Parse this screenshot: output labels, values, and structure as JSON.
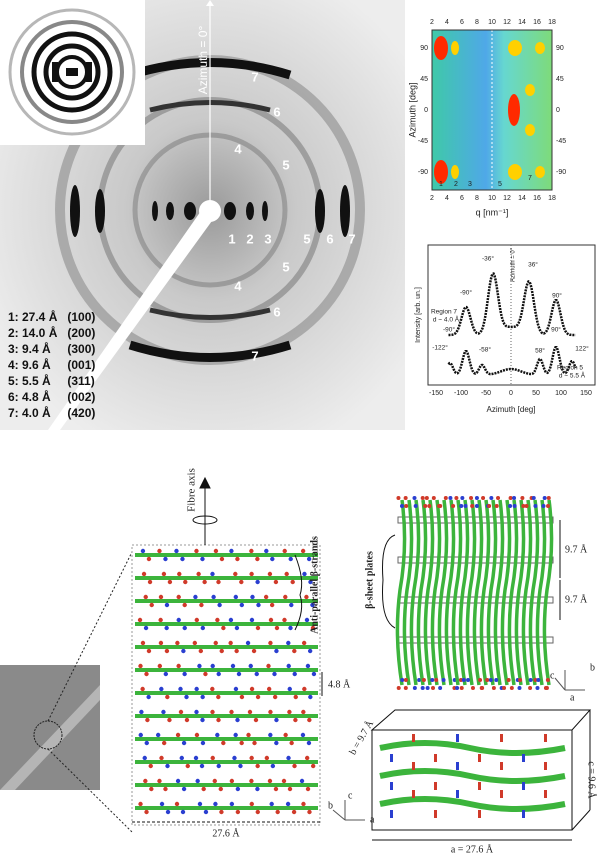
{
  "diffraction": {
    "azimuth_label": "Azimuth = 0°",
    "ring_labels": [
      "7",
      "6",
      "4",
      "5",
      "1",
      "2",
      "3",
      "5",
      "6",
      "7",
      "5",
      "4",
      "6",
      "7"
    ],
    "legend": [
      "1: 27.4 Å   (100)",
      "2: 14.0 Å   (200)",
      "3: 9.4 Å     (300)",
      "4: 9.6 Å     (001)",
      "5: 5.5 Å     (311)",
      "6: 4.8 Å     (002)",
      "7: 4.0 Å     (420)"
    ]
  },
  "heatmap": {
    "y_label": "Azimuth [deg]",
    "x_label": "q [nm⁻¹]",
    "x_ticks": [
      "2",
      "4",
      "6",
      "8",
      "10",
      "12",
      "14",
      "16",
      "18"
    ],
    "y_ticks": [
      "90",
      "45",
      "0",
      "-45",
      "-90"
    ],
    "peak_labels": [
      "1",
      "2",
      "3",
      "5",
      "7"
    ]
  },
  "profile": {
    "y_label": "Intensity [arb. un.]",
    "x_label": "Azimuth [deg]",
    "x_ticks": [
      "-150",
      "-100",
      "-50",
      "0",
      "50",
      "100",
      "150"
    ],
    "azimuth_label": "Azimuth = 0°",
    "annotations": [
      "-90°",
      "-36°",
      "36°",
      "90°",
      "Region 7",
      "d ~ 4.0 Å",
      "-122°",
      "-90°",
      "-58°",
      "58°",
      "90°",
      "122°",
      "Region 5",
      "d ~ 5.5 Å"
    ]
  },
  "structure": {
    "fibre_axis": "Fibre axis",
    "strands": "Anti-parallel β-strands",
    "strand_spacing": "4.8 Å",
    "width": "27.6 Å",
    "axes": [
      "a",
      "b",
      "c"
    ],
    "plates": "β-sheet plates",
    "plate_spacing": [
      "9.7 Å",
      "9.7 Å"
    ],
    "cell": [
      "b = 9.7 Å",
      "c = 9.6 Å",
      "a = 27.6 Å"
    ]
  }
}
